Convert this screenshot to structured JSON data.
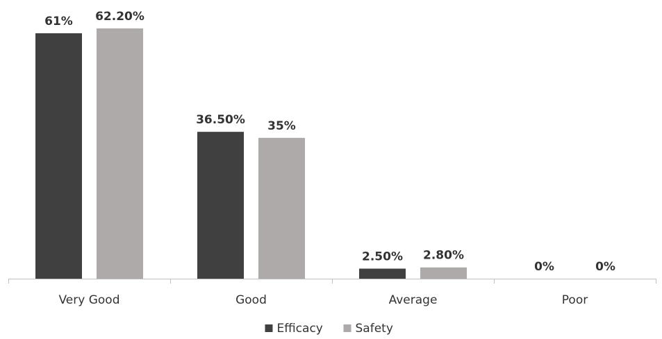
{
  "chart_data": {
    "type": "bar",
    "categories": [
      "Very Good",
      "Good",
      "Average",
      "Poor"
    ],
    "series": [
      {
        "name": "Efficacy",
        "color": "#404040",
        "values": [
          61,
          36.5,
          2.5,
          0
        ],
        "labels": [
          "61%",
          "36.50%",
          "2.50%",
          "0%"
        ]
      },
      {
        "name": "Safety",
        "color": "#AEAAAA",
        "values": [
          62.2,
          35,
          2.8,
          0
        ],
        "labels": [
          "62.20%",
          "35%",
          "2.80%",
          "0%"
        ]
      }
    ],
    "ylim": [
      0,
      62.2
    ],
    "grid": false,
    "legend": "bottom-center",
    "axis_color": "#BFBFBF"
  }
}
